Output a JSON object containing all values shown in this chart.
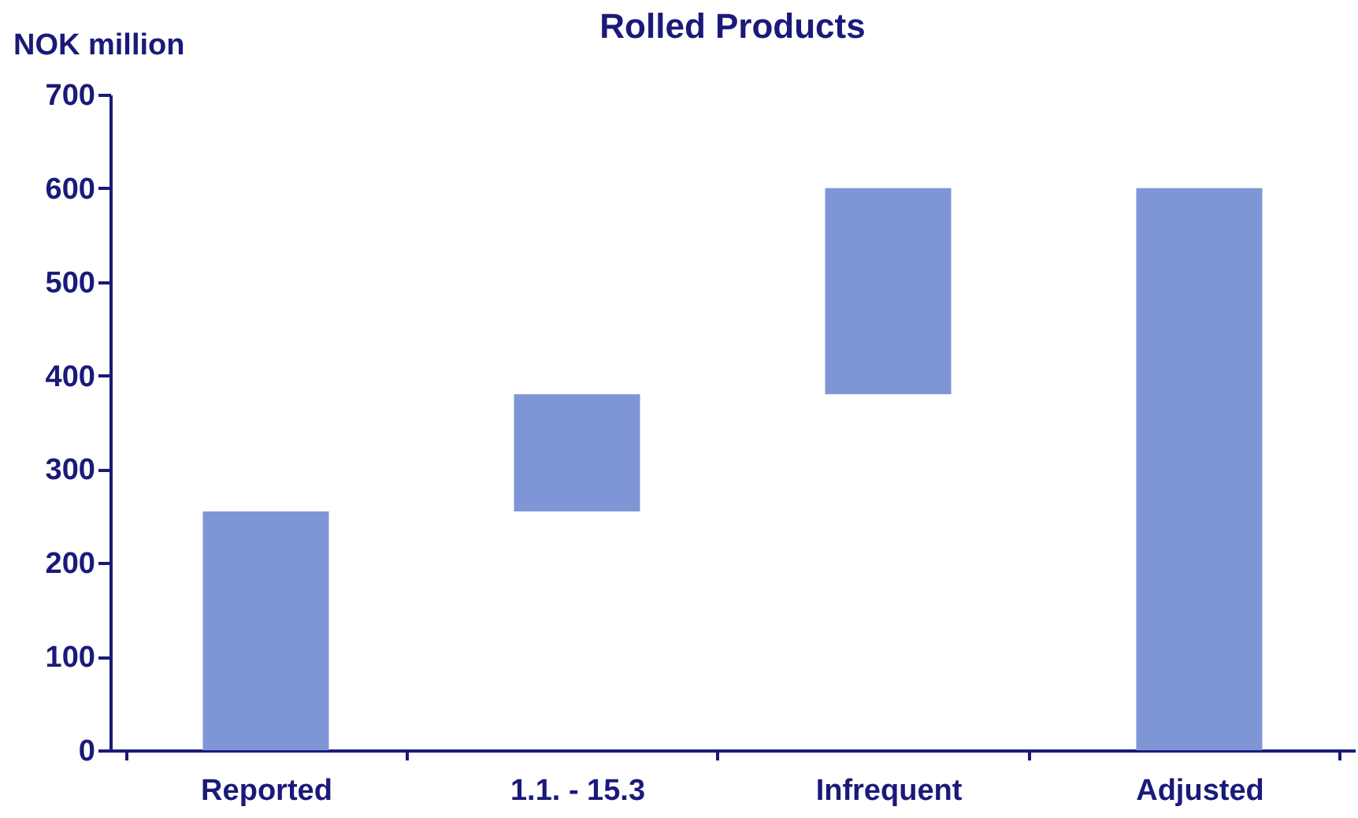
{
  "chart_data": {
    "type": "bar",
    "title": "Rolled Products",
    "ylabel": "NOK million",
    "categories": [
      "Reported",
      "1.1. - 15.3",
      "Infrequent",
      "Adjusted"
    ],
    "values": [
      255,
      125,
      220,
      600
    ],
    "base": [
      0,
      255,
      380,
      0
    ],
    "color": "#7f96d6",
    "ylim": [
      0,
      700
    ],
    "yticks": [
      0,
      100,
      200,
      300,
      400,
      500,
      600,
      700
    ],
    "grid": false
  }
}
